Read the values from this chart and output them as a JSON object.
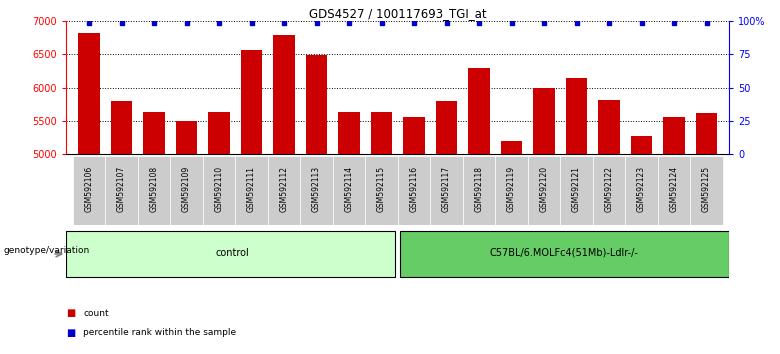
{
  "title": "GDS4527 / 100117693_TGI_at",
  "samples": [
    "GSM592106",
    "GSM592107",
    "GSM592108",
    "GSM592109",
    "GSM592110",
    "GSM592111",
    "GSM592112",
    "GSM592113",
    "GSM592114",
    "GSM592115",
    "GSM592116",
    "GSM592117",
    "GSM592118",
    "GSM592119",
    "GSM592120",
    "GSM592121",
    "GSM592122",
    "GSM592123",
    "GSM592124",
    "GSM592125"
  ],
  "counts": [
    6820,
    5800,
    5640,
    5500,
    5640,
    6560,
    6800,
    6490,
    5640,
    5640,
    5560,
    5800,
    6290,
    5190,
    6000,
    6140,
    5810,
    5270,
    5560,
    5620
  ],
  "percentile_ranks": [
    99,
    99,
    99,
    99,
    99,
    99,
    99,
    99,
    99,
    99,
    99,
    99,
    99,
    99,
    99,
    99,
    99,
    99,
    99,
    99
  ],
  "ylim_left": [
    5000,
    7000
  ],
  "ylim_right": [
    0,
    100
  ],
  "yticks_left": [
    5000,
    5500,
    6000,
    6500,
    7000
  ],
  "yticks_right": [
    0,
    25,
    50,
    75,
    100
  ],
  "ytick_labels_right": [
    "0",
    "25",
    "50",
    "75",
    "100%"
  ],
  "grid_values": [
    5500,
    6000,
    6500
  ],
  "bar_color": "#cc0000",
  "percentile_color": "#0000cc",
  "n_control": 10,
  "n_treatment": 10,
  "control_label": "control",
  "treatment_label": "C57BL/6.MOLFc4(51Mb)-Ldlr-/-",
  "genotype_label": "genotype/variation",
  "legend_count_label": "count",
  "legend_percentile_label": "percentile rank within the sample",
  "control_color": "#ccffcc",
  "treatment_color": "#66cc66",
  "xticklabel_bg": "#cccccc",
  "bar_width": 0.65
}
